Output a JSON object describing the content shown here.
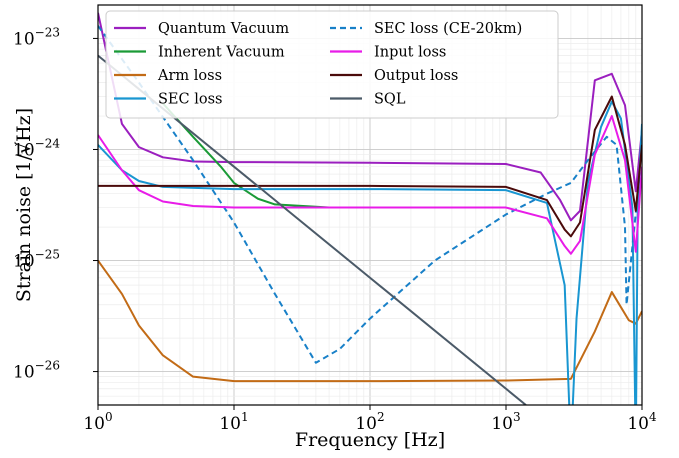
{
  "chart_data": {
    "type": "line",
    "xlabel": "Frequency [Hz]",
    "ylabel": "Strain noise [1/√Hz]",
    "x_scale": "log",
    "y_scale": "log",
    "xlim": [
      1,
      10000
    ],
    "ylim": [
      5e-27,
      2e-23
    ],
    "grid": true,
    "legend_location": "top-left, two columns",
    "x_ticks": [
      {
        "value": 1,
        "base": "10",
        "exp": "0"
      },
      {
        "value": 10,
        "base": "10",
        "exp": "1"
      },
      {
        "value": 100,
        "base": "10",
        "exp": "2"
      },
      {
        "value": 1000,
        "base": "10",
        "exp": "3"
      },
      {
        "value": 10000,
        "base": "10",
        "exp": "4"
      }
    ],
    "y_ticks": [
      {
        "value": 1e-26,
        "base": "10",
        "exp": "−26"
      },
      {
        "value": 1e-25,
        "base": "10",
        "exp": "−25"
      },
      {
        "value": 1e-24,
        "base": "10",
        "exp": "−24"
      },
      {
        "value": 1e-23,
        "base": "10",
        "exp": "−23"
      }
    ],
    "series": [
      {
        "name": "Quantum Vacuum",
        "color": "#9b1fbf",
        "dash": "solid",
        "points": [
          [
            1,
            1.7e-23
          ],
          [
            1.5,
            1.7e-24
          ],
          [
            2,
            1.05e-24
          ],
          [
            3,
            8.5e-25
          ],
          [
            5,
            7.8e-25
          ],
          [
            10,
            7.7e-25
          ],
          [
            100,
            7.6e-25
          ],
          [
            1000,
            7.4e-25
          ],
          [
            1800,
            6.2e-25
          ],
          [
            2500,
            3.5e-25
          ],
          [
            3000,
            2.3e-25
          ],
          [
            3500,
            2.8e-25
          ],
          [
            4500,
            4.2e-24
          ],
          [
            6000,
            4.8e-24
          ],
          [
            7500,
            2.5e-24
          ],
          [
            9000,
            4.2e-25
          ],
          [
            10000,
            1.5e-24
          ]
        ]
      },
      {
        "name": "Inherent Vacuum",
        "color": "#1a9a36",
        "dash": "solid",
        "points": [
          [
            3,
            2.6e-24
          ],
          [
            5,
            1.3e-24
          ],
          [
            8,
            7e-25
          ],
          [
            10,
            5e-25
          ],
          [
            15,
            3.6e-25
          ],
          [
            20,
            3.2e-25
          ],
          [
            50,
            3e-25
          ],
          [
            1000,
            3e-25
          ]
        ]
      },
      {
        "name": "Arm loss",
        "color": "#c26b16",
        "dash": "solid",
        "points": [
          [
            1,
            1e-25
          ],
          [
            1.5,
            5e-26
          ],
          [
            2,
            2.6e-26
          ],
          [
            3,
            1.4e-26
          ],
          [
            5,
            9e-27
          ],
          [
            10,
            8.2e-27
          ],
          [
            100,
            8.2e-27
          ],
          [
            1000,
            8.3e-27
          ],
          [
            3000,
            8.6e-27
          ],
          [
            4500,
            2.3e-26
          ],
          [
            6000,
            5.2e-26
          ],
          [
            7000,
            3.8e-26
          ],
          [
            8000,
            2.9e-26
          ],
          [
            9000,
            2.7e-26
          ],
          [
            10000,
            3.5e-26
          ]
        ]
      },
      {
        "name": "SEC loss",
        "color": "#1996d1",
        "dash": "solid",
        "points": [
          [
            1,
            1.1e-24
          ],
          [
            1.5,
            6.5e-25
          ],
          [
            2,
            5.2e-25
          ],
          [
            3,
            4.6e-25
          ],
          [
            10,
            4.4e-25
          ],
          [
            100,
            4.4e-25
          ],
          [
            1000,
            4.3e-25
          ],
          [
            2000,
            3.3e-25
          ],
          [
            2700,
            6e-26
          ],
          [
            3000,
            2e-27
          ],
          [
            3300,
            3e-26
          ],
          [
            4000,
            5e-25
          ],
          [
            5000,
            1.6e-24
          ],
          [
            6000,
            2.7e-24
          ],
          [
            7000,
            1.9e-24
          ],
          [
            8500,
            3e-25
          ],
          [
            9000,
            2e-27
          ],
          [
            9300,
            3e-25
          ],
          [
            10000,
            1.7e-24
          ]
        ]
      },
      {
        "name": "SEC loss (CE-20km)",
        "color": "#1880c8",
        "dash": "dashed",
        "points": [
          [
            1,
            1.3e-23
          ],
          [
            2,
            4e-24
          ],
          [
            5,
            8e-25
          ],
          [
            10,
            2.2e-25
          ],
          [
            20,
            5e-26
          ],
          [
            40,
            1.2e-26
          ],
          [
            60,
            1.6e-26
          ],
          [
            100,
            3e-26
          ],
          [
            300,
            1e-25
          ],
          [
            1000,
            2.6e-25
          ],
          [
            2000,
            4e-25
          ],
          [
            3000,
            5e-25
          ],
          [
            4000,
            8e-25
          ],
          [
            5500,
            1.3e-24
          ],
          [
            6500,
            1.1e-24
          ],
          [
            7500,
            2e-25
          ],
          [
            7700,
            4e-26
          ],
          [
            8300,
            1e-25
          ],
          [
            9300,
            4e-25
          ],
          [
            10000,
            6e-25
          ]
        ]
      },
      {
        "name": "Input loss",
        "color": "#e81ce8",
        "dash": "solid",
        "points": [
          [
            1,
            1.35e-24
          ],
          [
            1.5,
            6.5e-25
          ],
          [
            2,
            4.3e-25
          ],
          [
            3,
            3.4e-25
          ],
          [
            5,
            3.1e-25
          ],
          [
            10,
            3e-25
          ],
          [
            100,
            3e-25
          ],
          [
            1000,
            3e-25
          ],
          [
            2000,
            2.4e-25
          ],
          [
            2700,
            1.35e-25
          ],
          [
            3000,
            1.15e-25
          ],
          [
            3500,
            1.5e-25
          ],
          [
            4500,
            9e-25
          ],
          [
            6000,
            2e-24
          ],
          [
            7500,
            8e-25
          ],
          [
            9000,
            1.2e-25
          ],
          [
            10000,
            7e-25
          ]
        ]
      },
      {
        "name": "Output loss",
        "color": "#4a0a0a",
        "dash": "solid",
        "points": [
          [
            1,
            4.7e-25
          ],
          [
            10,
            4.7e-25
          ],
          [
            100,
            4.7e-25
          ],
          [
            1000,
            4.6e-25
          ],
          [
            2000,
            3.5e-25
          ],
          [
            2700,
            1.9e-25
          ],
          [
            3000,
            1.65e-25
          ],
          [
            3500,
            2.2e-25
          ],
          [
            4500,
            1.5e-24
          ],
          [
            6000,
            3e-24
          ],
          [
            7500,
            1.1e-24
          ],
          [
            9000,
            2.8e-25
          ],
          [
            10000,
            1.1e-24
          ]
        ]
      },
      {
        "name": "SQL",
        "color": "#4b5a68",
        "dash": "solid",
        "points": [
          [
            1,
            7e-24
          ],
          [
            10,
            7e-25
          ],
          [
            100,
            7e-26
          ],
          [
            1000,
            7e-27
          ],
          [
            1400,
            5e-27
          ]
        ]
      }
    ]
  }
}
